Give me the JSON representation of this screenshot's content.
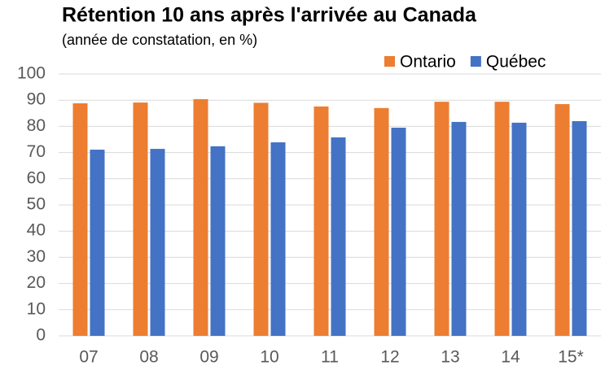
{
  "chart_data": {
    "type": "bar",
    "title": "Rétention 10 ans après l'arrivée au Canada",
    "subtitle": "(année de constatation, en %)",
    "categories": [
      "07",
      "08",
      "09",
      "10",
      "11",
      "12",
      "13",
      "14",
      "15*"
    ],
    "series": [
      {
        "name": "Ontario",
        "color": "#ed7d31",
        "values": [
          88.8,
          89.1,
          90.4,
          89,
          87.6,
          87,
          89.4,
          89.4,
          88.5
        ]
      },
      {
        "name": "Québec",
        "color": "#4472c4",
        "values": [
          71.1,
          71.4,
          72.4,
          73.9,
          75.8,
          79.5,
          81.7,
          81.4,
          82
        ]
      }
    ],
    "ylim": [
      0,
      100
    ],
    "yticks": [
      0,
      10,
      20,
      30,
      40,
      50,
      60,
      70,
      80,
      90,
      100
    ],
    "grid": true,
    "legend": "top-right"
  }
}
